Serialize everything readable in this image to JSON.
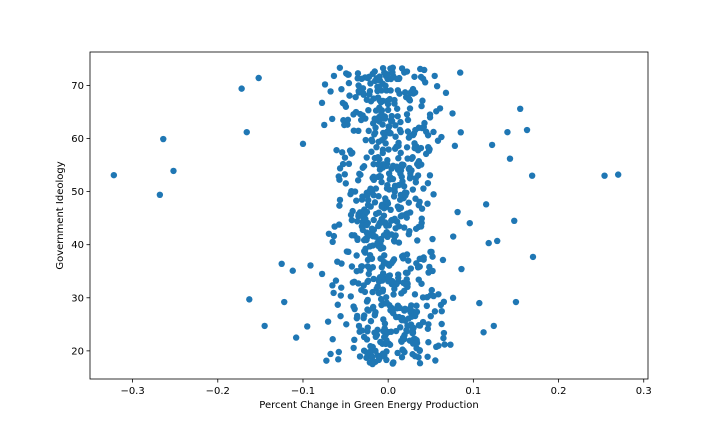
{
  "chart_data": {
    "type": "scatter",
    "title": "",
    "xlabel": "Percent Change in Green Energy Production",
    "ylabel": "Government Ideology",
    "xlim": [
      -0.35,
      0.305
    ],
    "ylim": [
      14.7,
      76.3
    ],
    "x_ticks": [
      -0.3,
      -0.2,
      -0.1,
      0.0,
      0.1,
      0.2,
      0.3
    ],
    "x_tick_labels": [
      "−0.3",
      "−0.2",
      "−0.1",
      "0.0",
      "0.1",
      "0.2",
      "0.3"
    ],
    "y_ticks": [
      20,
      30,
      40,
      50,
      60,
      70
    ],
    "y_tick_labels": [
      "20",
      "30",
      "40",
      "50",
      "60",
      "70"
    ],
    "grid": false,
    "marker_color": "#1f77b4",
    "outliers": [
      {
        "x": -0.322,
        "y": 53.1
      },
      {
        "x": -0.268,
        "y": 49.4
      },
      {
        "x": -0.264,
        "y": 59.9
      },
      {
        "x": -0.252,
        "y": 53.9
      },
      {
        "x": -0.172,
        "y": 69.4
      },
      {
        "x": -0.166,
        "y": 61.2
      },
      {
        "x": -0.163,
        "y": 29.7
      },
      {
        "x": -0.152,
        "y": 71.4
      },
      {
        "x": -0.145,
        "y": 24.7
      },
      {
        "x": -0.125,
        "y": 36.4
      },
      {
        "x": -0.122,
        "y": 29.2
      },
      {
        "x": -0.112,
        "y": 35.1
      },
      {
        "x": -0.108,
        "y": 22.5
      },
      {
        "x": -0.1,
        "y": 59.0
      },
      {
        "x": -0.095,
        "y": 24.6
      },
      {
        "x": 0.107,
        "y": 29.0
      },
      {
        "x": 0.112,
        "y": 23.5
      },
      {
        "x": 0.115,
        "y": 47.6
      },
      {
        "x": 0.118,
        "y": 40.3
      },
      {
        "x": 0.122,
        "y": 58.8
      },
      {
        "x": 0.124,
        "y": 24.7
      },
      {
        "x": 0.128,
        "y": 40.7
      },
      {
        "x": 0.14,
        "y": 61.2
      },
      {
        "x": 0.143,
        "y": 56.2
      },
      {
        "x": 0.148,
        "y": 44.5
      },
      {
        "x": 0.15,
        "y": 29.2
      },
      {
        "x": 0.155,
        "y": 65.6
      },
      {
        "x": 0.163,
        "y": 61.6
      },
      {
        "x": 0.169,
        "y": 53.0
      },
      {
        "x": 0.17,
        "y": 37.7
      },
      {
        "x": 0.254,
        "y": 53.0
      },
      {
        "x": 0.27,
        "y": 53.2
      }
    ],
    "core_distribution": {
      "n": 720,
      "x_center": 0.0,
      "x_spread": 0.032,
      "y_range": [
        17.5,
        73.5
      ]
    }
  }
}
